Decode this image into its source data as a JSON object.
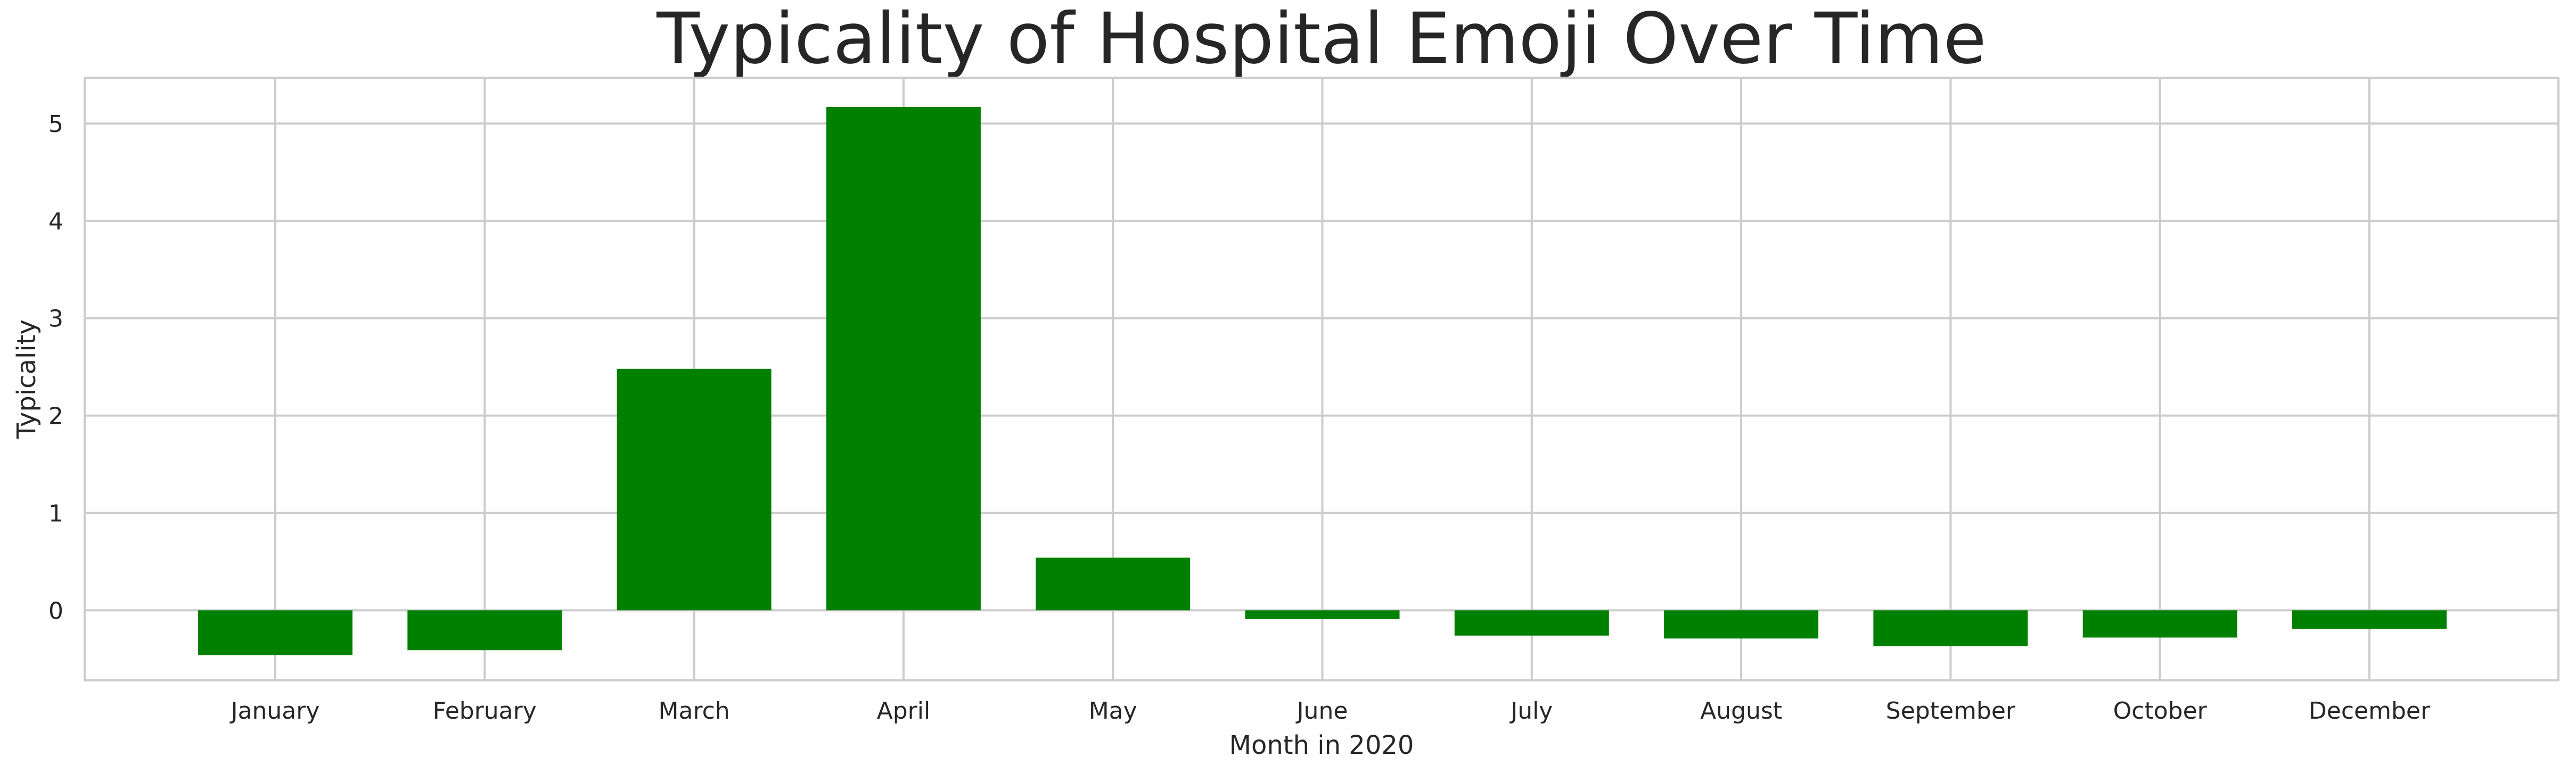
{
  "chart_data": {
    "type": "bar",
    "title": "Typicality of Hospital Emoji Over Time",
    "xlabel": "Month in 2020",
    "ylabel": "Typicality",
    "categories": [
      "January",
      "February",
      "March",
      "April",
      "May",
      "June",
      "July",
      "August",
      "September",
      "October",
      "December"
    ],
    "values": [
      -0.46,
      -0.41,
      2.48,
      5.17,
      0.54,
      -0.09,
      -0.26,
      -0.29,
      -0.37,
      -0.28,
      -0.19
    ],
    "ylim": [
      -0.72,
      5.47
    ],
    "yticks": [
      0,
      1,
      2,
      3,
      4,
      5
    ],
    "grid": true,
    "bar_color": "#008000",
    "grid_color": "#cccccc"
  }
}
